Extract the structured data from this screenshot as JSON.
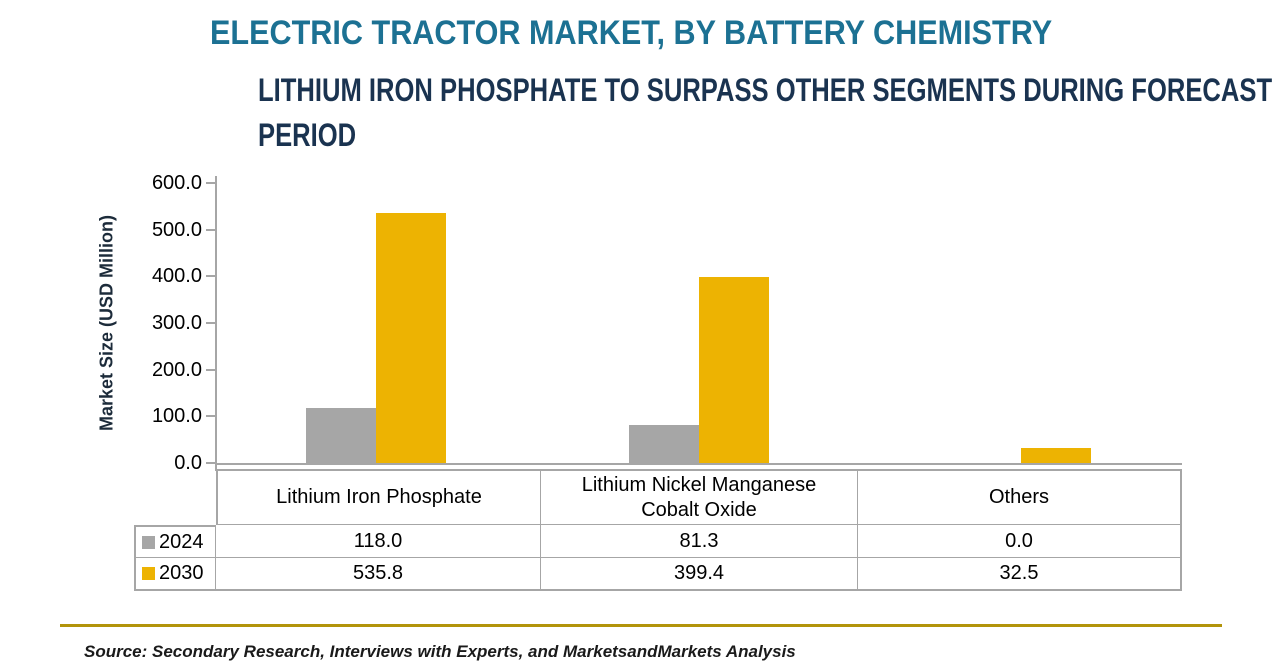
{
  "page": {
    "title": "ELECTRIC TRACTOR MARKET, BY BATTERY CHEMISTRY",
    "subtitle_line1": "LITHIUM IRON PHOSPHATE TO SURPASS OTHER SEGMENTS DURING FORECAST",
    "subtitle_line2": "PERIOD",
    "source": "Source: Secondary Research, Interviews with Experts, and MarketsandMarkets Analysis"
  },
  "colors": {
    "title": "#1C7193",
    "subtitle": "#1A3350",
    "axis": "#A6A6A6",
    "table_border": "#A6A6A6",
    "series_2024": "#A6A6A6",
    "series_2030": "#EDB302",
    "bottom_rule": "#B2940A"
  },
  "chart_data": {
    "type": "bar",
    "title": "ELECTRIC TRACTOR MARKET, BY BATTERY CHEMISTRY",
    "subtitle": "LITHIUM IRON PHOSPHATE TO SURPASS OTHER SEGMENTS DURING FORECAST PERIOD",
    "categories": [
      "Lithium Iron Phosphate",
      "Lithium Nickel Manganese Cobalt Oxide",
      "Others"
    ],
    "series": [
      {
        "name": "2024",
        "color": "#A6A6A6",
        "values": [
          118.0,
          81.3,
          0.0
        ]
      },
      {
        "name": "2030",
        "color": "#EDB302",
        "values": [
          535.8,
          399.4,
          32.5
        ]
      }
    ],
    "xlabel": "",
    "ylabel": "Market Size (USD Million)",
    "ylim": [
      0,
      600
    ],
    "ytick_step": 100,
    "yticks": [
      "600.0",
      "500.0",
      "400.0",
      "300.0",
      "200.0",
      "100.0",
      "0.0"
    ],
    "grid": false,
    "legend_position": "data-table-left",
    "value_format_decimals": 1
  }
}
